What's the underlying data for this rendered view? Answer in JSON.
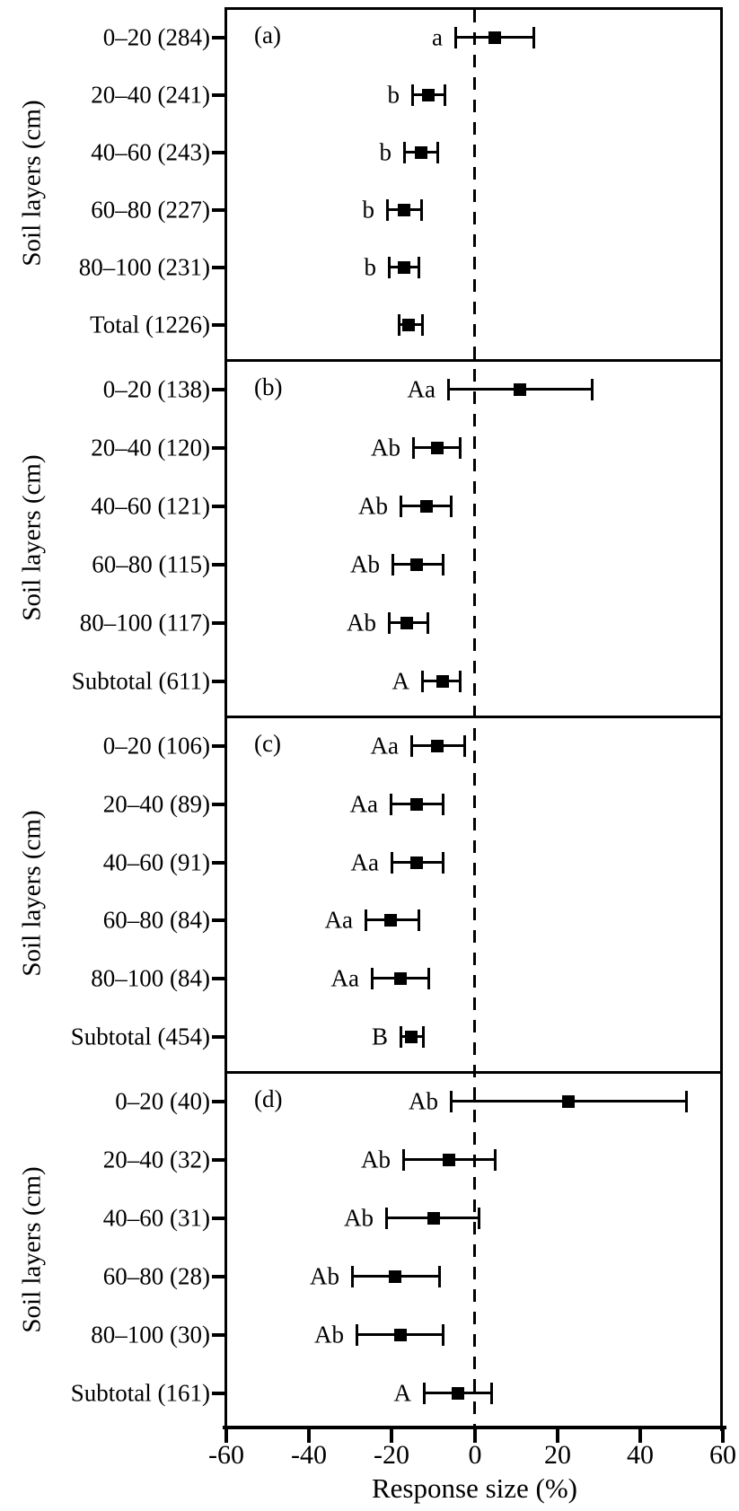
{
  "chart_data": {
    "type": "forest",
    "title": "",
    "xlabel": "Response size (%)",
    "ylabel": "Soil layers (cm)",
    "xlim": [
      -60,
      60
    ],
    "x_ticks": [
      -60,
      -40,
      -20,
      0,
      20,
      40,
      60
    ],
    "x_tick_labels": [
      "-60",
      "-40",
      "-20",
      "0",
      "20",
      "40",
      "60"
    ],
    "reference_line_x": 0,
    "grid": false,
    "marker": "filled-black-square",
    "colors": {
      "foreground": "#000000",
      "background": "#ffffff"
    },
    "panels": [
      {
        "panel_letter": "(a)",
        "ylabel": "Soil layers (cm)",
        "rows": [
          {
            "label": "0–20 (284)",
            "letter": "a",
            "mean": 4.8,
            "ci_low": -4.6,
            "ci_high": 14.3
          },
          {
            "label": "20–40 (241)",
            "letter": "b",
            "mean": -11.1,
            "ci_low": -15.0,
            "ci_high": -7.2
          },
          {
            "label": "40–60 (243)",
            "letter": "b",
            "mean": -13.0,
            "ci_low": -17.0,
            "ci_high": -8.9
          },
          {
            "label": "60–80 (227)",
            "letter": "b",
            "mean": -17.0,
            "ci_low": -21.1,
            "ci_high": -13.0
          },
          {
            "label": "80–100 (231)",
            "letter": "b",
            "mean": -17.0,
            "ci_low": -20.7,
            "ci_high": -13.5
          },
          {
            "label": "Total (1226)",
            "letter": "",
            "mean": -16.0,
            "ci_low": -18.3,
            "ci_high": -12.6
          }
        ]
      },
      {
        "panel_letter": "(b)",
        "ylabel": "Soil layers (cm)",
        "rows": [
          {
            "label": "0–20 (138)",
            "letter": "Aa",
            "mean": 10.9,
            "ci_low": -6.5,
            "ci_high": 28.3
          },
          {
            "label": "20–40 (120)",
            "letter": "Ab",
            "mean": -8.9,
            "ci_low": -14.8,
            "ci_high": -3.5
          },
          {
            "label": "40–60 (121)",
            "letter": "Ab",
            "mean": -11.7,
            "ci_low": -17.8,
            "ci_high": -5.7
          },
          {
            "label": "60–80 (115)",
            "letter": "Ab",
            "mean": -13.9,
            "ci_low": -19.8,
            "ci_high": -7.8
          },
          {
            "label": "80–100 (117)",
            "letter": "Ab",
            "mean": -16.3,
            "ci_low": -20.7,
            "ci_high": -11.3
          },
          {
            "label": "Subtotal (611)",
            "letter": "A",
            "mean": -7.8,
            "ci_low": -12.6,
            "ci_high": -3.5
          }
        ]
      },
      {
        "panel_letter": "(c)",
        "ylabel": "Soil layers (cm)",
        "rows": [
          {
            "label": "0–20 (106)",
            "letter": "Aa",
            "mean": -8.9,
            "ci_low": -15.4,
            "ci_high": -2.4
          },
          {
            "label": "20–40 (89)",
            "letter": "Aa",
            "mean": -14.1,
            "ci_low": -20.2,
            "ci_high": -7.6
          },
          {
            "label": "40–60 (91)",
            "letter": "Aa",
            "mean": -14.1,
            "ci_low": -20.0,
            "ci_high": -7.8
          },
          {
            "label": "60–80 (84)",
            "letter": "Aa",
            "mean": -20.2,
            "ci_low": -26.3,
            "ci_high": -13.5
          },
          {
            "label": "80–100 (84)",
            "letter": "Aa",
            "mean": -18.0,
            "ci_low": -24.8,
            "ci_high": -11.1
          },
          {
            "label": "Subtotal (454)",
            "letter": "B",
            "mean": -15.2,
            "ci_low": -17.8,
            "ci_high": -12.4
          }
        ]
      },
      {
        "panel_letter": "(d)",
        "ylabel": "Soil layers (cm)",
        "rows": [
          {
            "label": "0–20 (40)",
            "letter": "Ab",
            "mean": 22.6,
            "ci_low": -5.7,
            "ci_high": 51.1
          },
          {
            "label": "20–40 (32)",
            "letter": "Ab",
            "mean": -6.1,
            "ci_low": -17.2,
            "ci_high": 4.8
          },
          {
            "label": "40–60 (31)",
            "letter": "Ab",
            "mean": -9.8,
            "ci_low": -21.3,
            "ci_high": 0.9
          },
          {
            "label": "60–80 (28)",
            "letter": "Ab",
            "mean": -19.1,
            "ci_low": -29.6,
            "ci_high": -8.5
          },
          {
            "label": "80–100 (30)",
            "letter": "Ab",
            "mean": -18.0,
            "ci_low": -28.5,
            "ci_high": -7.6
          },
          {
            "label": "Subtotal (161)",
            "letter": "A",
            "mean": -4.1,
            "ci_low": -12.2,
            "ci_high": 4.1
          }
        ]
      }
    ]
  }
}
